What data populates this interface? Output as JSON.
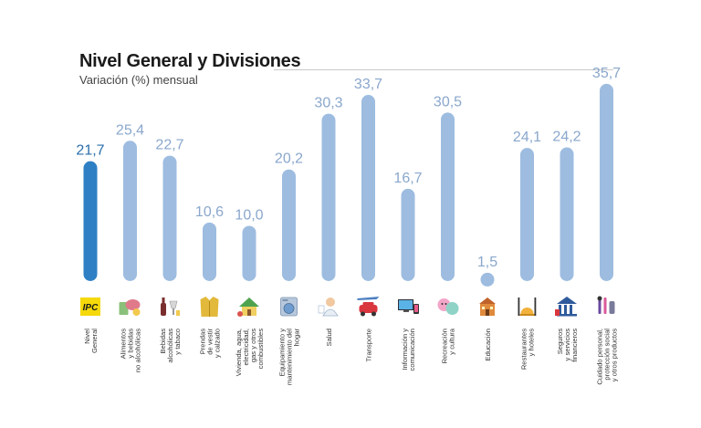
{
  "header": {
    "title": "Nivel General y Divisiones",
    "subtitle": "Variación (%) mensual"
  },
  "colors": {
    "highlight_bar": "#2f7fc4",
    "highlight_label": "#2a6fab",
    "bar": "#9dbce0",
    "label": "#8aa7cc"
  },
  "chart_data": {
    "type": "bar",
    "title": "Nivel General y Divisiones",
    "subtitle": "Variación (%) mensual",
    "ylim": [
      0,
      38
    ],
    "grid": false,
    "legend": "none",
    "categories": [
      {
        "lines": [
          "Nivel",
          "General"
        ],
        "value": 21.7,
        "label": "21,7",
        "icon": "ipc-logo-icon",
        "highlight": true
      },
      {
        "lines": [
          "Alimentos",
          "y bebidas",
          "no alcohólicas"
        ],
        "value": 25.4,
        "label": "25,4",
        "icon": "food-icon"
      },
      {
        "lines": [
          "Bebidas",
          "alcohólicas",
          "y tabaco"
        ],
        "value": 22.7,
        "label": "22,7",
        "icon": "bottle-icon"
      },
      {
        "lines": [
          "Prendas",
          "de vestir",
          "y calzado"
        ],
        "value": 10.6,
        "label": "10,6",
        "icon": "jacket-icon"
      },
      {
        "lines": [
          "Vivienda, agua,",
          "electricidad,",
          "gas y otros",
          "combustibles"
        ],
        "value": 10.0,
        "label": "10,0",
        "icon": "house-icon"
      },
      {
        "lines": [
          "Equipamiento y",
          "mantenimiento del",
          "hogar"
        ],
        "value": 20.2,
        "label": "20,2",
        "icon": "washing-machine-icon"
      },
      {
        "lines": [
          "Salud"
        ],
        "value": 30.3,
        "label": "30,3",
        "icon": "doctor-icon"
      },
      {
        "lines": [
          "Transporte"
        ],
        "value": 33.7,
        "label": "33,7",
        "icon": "transport-icon"
      },
      {
        "lines": [
          "Información y",
          "comunicación"
        ],
        "value": 16.7,
        "label": "16,7",
        "icon": "devices-icon"
      },
      {
        "lines": [
          "Recreación",
          "y cultura"
        ],
        "value": 30.5,
        "label": "30,5",
        "icon": "theater-masks-icon"
      },
      {
        "lines": [
          "Educación"
        ],
        "value": 1.5,
        "label": "1,5",
        "icon": "school-icon"
      },
      {
        "lines": [
          "Restaurantes",
          "y hoteles"
        ],
        "value": 24.1,
        "label": "24,1",
        "icon": "restaurant-icon"
      },
      {
        "lines": [
          "Seguros",
          "y servicios",
          "financieros"
        ],
        "value": 24.2,
        "label": "24,2",
        "icon": "bank-icon"
      },
      {
        "lines": [
          "Cuidado personal,",
          "protección social",
          "y otros productos"
        ],
        "value": 35.7,
        "label": "35,7",
        "icon": "personal-care-icon"
      }
    ]
  }
}
